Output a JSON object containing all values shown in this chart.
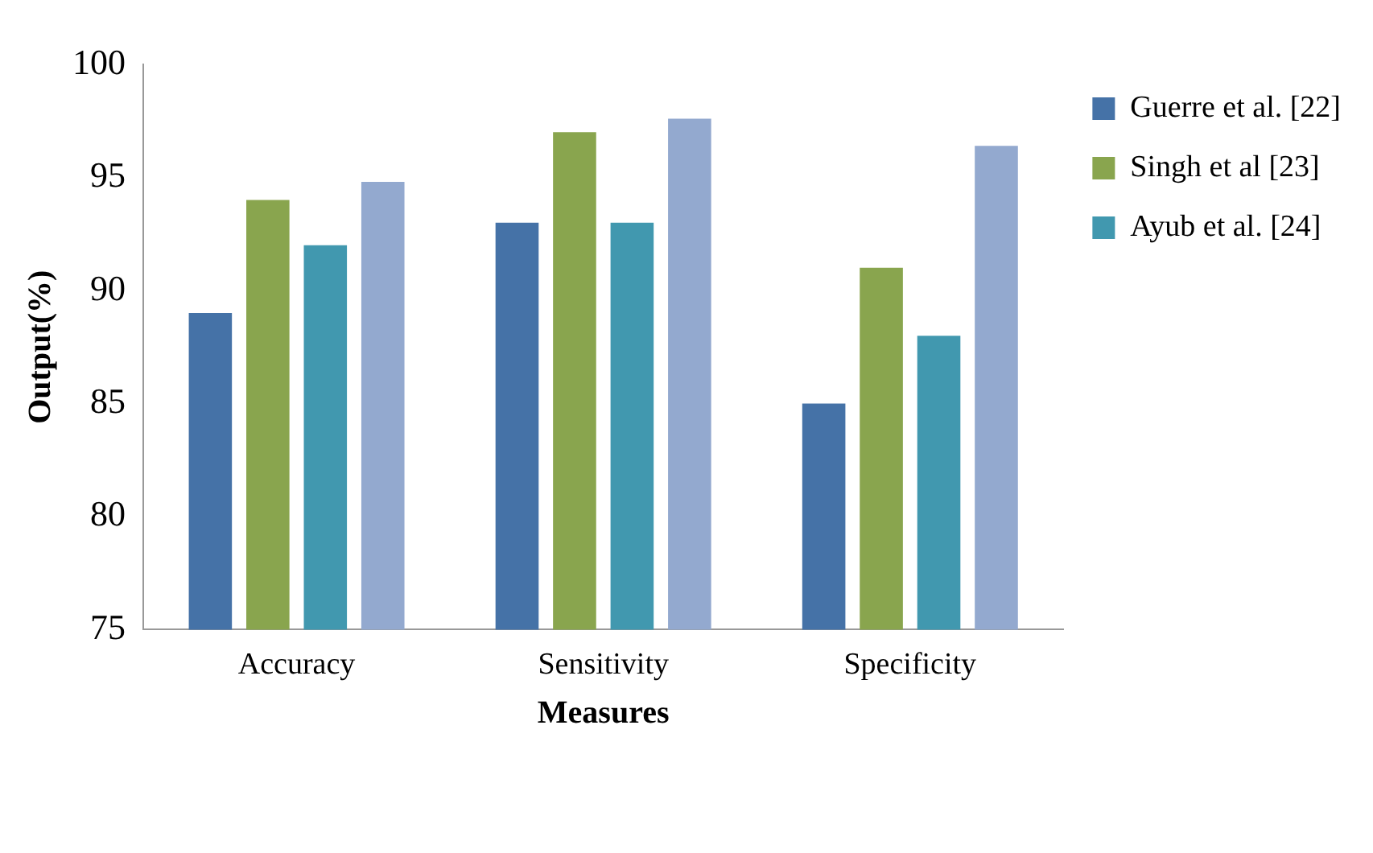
{
  "chart_data": {
    "type": "bar",
    "xlabel": "Measures",
    "ylabel": "Output(%)",
    "categories": [
      "Accuracy",
      "Sensitivity",
      "Specificity"
    ],
    "series": [
      {
        "name": "Guerre et al. [22]",
        "color": "#4572a7",
        "values": [
          89,
          93,
          85
        ]
      },
      {
        "name": "Singh et al [23]",
        "color": "#89a54e",
        "values": [
          94,
          97,
          91
        ]
      },
      {
        "name": "Ayub et al. [24]",
        "color": "#4198af",
        "values": [
          92,
          93,
          88
        ]
      },
      {
        "color": "#93a9cf",
        "values": [
          94.8,
          97.6,
          96.4
        ]
      }
    ],
    "ylim": [
      75,
      100
    ],
    "yticks": [
      75,
      80,
      85,
      90,
      95,
      100
    ],
    "grid": false,
    "legend": "right"
  }
}
